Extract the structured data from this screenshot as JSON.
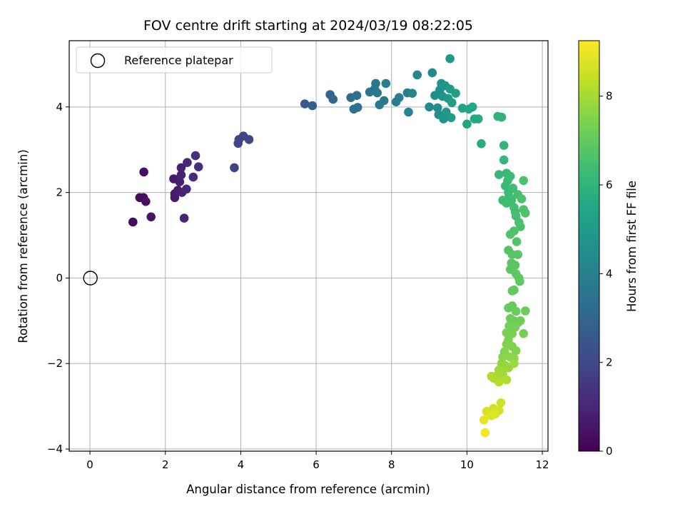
{
  "chart_data": {
    "type": "scatter",
    "title": "FOV centre drift starting at 2024/03/19 08:22:05",
    "xlabel": "Angular distance from reference (arcmin)",
    "ylabel": "Rotation from reference (arcmin)",
    "xlim": [
      -0.55,
      12.15
    ],
    "ylim": [
      -4.05,
      5.55
    ],
    "xticks": [
      0,
      2,
      4,
      6,
      8,
      10,
      12
    ],
    "yticks": [
      -4,
      -2,
      0,
      2,
      4
    ],
    "xtick_labels": [
      "0",
      "2",
      "4",
      "6",
      "8",
      "10",
      "12"
    ],
    "ytick_labels": [
      "−4",
      "−2",
      "0",
      "2",
      "4"
    ],
    "grid": true,
    "legend": {
      "position": "upper-left",
      "entries": [
        {
          "label": "Reference platepar",
          "marker": "open-circle"
        }
      ]
    },
    "reference_point": {
      "x": 0,
      "y": 0
    },
    "colorbar": {
      "label": "Hours from first FF file",
      "range": [
        0,
        9.25
      ],
      "ticks": [
        0,
        2,
        4,
        6,
        8
      ],
      "tick_labels": [
        "0",
        "2",
        "4",
        "6",
        "8"
      ],
      "colormap": "viridis"
    },
    "points": [
      {
        "x": 1.14,
        "y": 1.31,
        "t": 0.25
      },
      {
        "x": 1.32,
        "y": 1.88,
        "t": 0.3
      },
      {
        "x": 1.42,
        "y": 1.88,
        "t": 0.35
      },
      {
        "x": 1.43,
        "y": 2.48,
        "t": 0.4
      },
      {
        "x": 1.48,
        "y": 1.79,
        "t": 0.45
      },
      {
        "x": 1.62,
        "y": 1.43,
        "t": 0.5
      },
      {
        "x": 2.22,
        "y": 2.32,
        "t": 0.65
      },
      {
        "x": 2.25,
        "y": 1.97,
        "t": 0.7
      },
      {
        "x": 2.25,
        "y": 1.88,
        "t": 0.72
      },
      {
        "x": 2.33,
        "y": 2.05,
        "t": 0.75
      },
      {
        "x": 2.38,
        "y": 2.25,
        "t": 0.8
      },
      {
        "x": 2.42,
        "y": 2.58,
        "t": 0.85
      },
      {
        "x": 2.42,
        "y": 2.41,
        "t": 0.88
      },
      {
        "x": 2.44,
        "y": 2.0,
        "t": 0.9
      },
      {
        "x": 2.5,
        "y": 1.4,
        "t": 0.95
      },
      {
        "x": 2.56,
        "y": 2.08,
        "t": 1.0
      },
      {
        "x": 2.58,
        "y": 2.7,
        "t": 1.05
      },
      {
        "x": 2.74,
        "y": 2.36,
        "t": 1.15
      },
      {
        "x": 2.8,
        "y": 2.86,
        "t": 1.2
      },
      {
        "x": 2.88,
        "y": 2.6,
        "t": 1.25
      },
      {
        "x": 3.83,
        "y": 2.58,
        "t": 1.8
      },
      {
        "x": 3.93,
        "y": 3.15,
        "t": 1.85
      },
      {
        "x": 3.95,
        "y": 3.24,
        "t": 1.9
      },
      {
        "x": 4.07,
        "y": 3.32,
        "t": 1.95
      },
      {
        "x": 4.22,
        "y": 3.24,
        "t": 2.0
      },
      {
        "x": 5.7,
        "y": 4.07,
        "t": 2.65
      },
      {
        "x": 5.9,
        "y": 4.03,
        "t": 2.75
      },
      {
        "x": 6.37,
        "y": 4.29,
        "t": 3.0
      },
      {
        "x": 6.45,
        "y": 4.18,
        "t": 3.05
      },
      {
        "x": 6.92,
        "y": 4.22,
        "t": 3.25
      },
      {
        "x": 7.0,
        "y": 3.95,
        "t": 3.3
      },
      {
        "x": 7.08,
        "y": 4.27,
        "t": 3.35
      },
      {
        "x": 7.1,
        "y": 3.99,
        "t": 3.4
      },
      {
        "x": 7.42,
        "y": 4.35,
        "t": 3.5
      },
      {
        "x": 7.55,
        "y": 4.42,
        "t": 3.55
      },
      {
        "x": 7.58,
        "y": 4.55,
        "t": 3.6
      },
      {
        "x": 7.62,
        "y": 4.33,
        "t": 3.65
      },
      {
        "x": 7.68,
        "y": 4.05,
        "t": 3.7
      },
      {
        "x": 7.8,
        "y": 4.15,
        "t": 3.75
      },
      {
        "x": 7.85,
        "y": 4.55,
        "t": 3.8
      },
      {
        "x": 8.12,
        "y": 4.12,
        "t": 3.9
      },
      {
        "x": 8.2,
        "y": 4.22,
        "t": 3.95
      },
      {
        "x": 8.42,
        "y": 4.33,
        "t": 4.05
      },
      {
        "x": 8.45,
        "y": 3.88,
        "t": 4.1
      },
      {
        "x": 8.55,
        "y": 4.32,
        "t": 4.15
      },
      {
        "x": 8.68,
        "y": 4.75,
        "t": 4.2
      },
      {
        "x": 9.0,
        "y": 4.0,
        "t": 4.35
      },
      {
        "x": 9.08,
        "y": 4.8,
        "t": 4.4
      },
      {
        "x": 9.15,
        "y": 4.27,
        "t": 4.45
      },
      {
        "x": 9.22,
        "y": 3.98,
        "t": 4.5
      },
      {
        "x": 9.25,
        "y": 3.82,
        "t": 4.55
      },
      {
        "x": 9.28,
        "y": 4.4,
        "t": 4.6
      },
      {
        "x": 9.32,
        "y": 4.55,
        "t": 4.65
      },
      {
        "x": 9.35,
        "y": 4.25,
        "t": 4.7
      },
      {
        "x": 9.38,
        "y": 3.72,
        "t": 4.75
      },
      {
        "x": 9.42,
        "y": 4.5,
        "t": 4.8
      },
      {
        "x": 9.45,
        "y": 3.88,
        "t": 4.85
      },
      {
        "x": 9.5,
        "y": 4.2,
        "t": 4.9
      },
      {
        "x": 9.55,
        "y": 5.13,
        "t": 4.95
      },
      {
        "x": 9.55,
        "y": 4.42,
        "t": 5.0
      },
      {
        "x": 9.58,
        "y": 3.75,
        "t": 5.05
      },
      {
        "x": 9.6,
        "y": 4.1,
        "t": 5.1
      },
      {
        "x": 9.7,
        "y": 4.32,
        "t": 5.15
      },
      {
        "x": 9.88,
        "y": 3.97,
        "t": 5.3
      },
      {
        "x": 10.0,
        "y": 3.6,
        "t": 5.4
      },
      {
        "x": 10.05,
        "y": 3.95,
        "t": 5.45
      },
      {
        "x": 10.15,
        "y": 4.0,
        "t": 5.5
      },
      {
        "x": 10.2,
        "y": 3.72,
        "t": 5.55
      },
      {
        "x": 10.3,
        "y": 3.72,
        "t": 5.6
      },
      {
        "x": 10.38,
        "y": 3.14,
        "t": 5.7
      },
      {
        "x": 10.82,
        "y": 3.78,
        "t": 5.95
      },
      {
        "x": 10.92,
        "y": 3.76,
        "t": 6.0
      },
      {
        "x": 10.85,
        "y": 2.42,
        "t": 6.1
      },
      {
        "x": 10.98,
        "y": 3.1,
        "t": 6.05
      },
      {
        "x": 10.98,
        "y": 2.76,
        "t": 6.1
      },
      {
        "x": 11.05,
        "y": 2.45,
        "t": 6.15
      },
      {
        "x": 11.02,
        "y": 2.15,
        "t": 6.2
      },
      {
        "x": 11.08,
        "y": 2.28,
        "t": 6.22
      },
      {
        "x": 11.1,
        "y": 2.0,
        "t": 6.25
      },
      {
        "x": 11.12,
        "y": 1.9,
        "t": 6.28
      },
      {
        "x": 11.15,
        "y": 2.38,
        "t": 6.3
      },
      {
        "x": 11.18,
        "y": 1.82,
        "t": 6.32
      },
      {
        "x": 10.95,
        "y": 1.82,
        "t": 6.35
      },
      {
        "x": 11.05,
        "y": 1.75,
        "t": 6.38
      },
      {
        "x": 11.22,
        "y": 2.1,
        "t": 6.4
      },
      {
        "x": 11.25,
        "y": 1.65,
        "t": 6.42
      },
      {
        "x": 11.28,
        "y": 1.55,
        "t": 6.45
      },
      {
        "x": 11.3,
        "y": 1.45,
        "t": 6.48
      },
      {
        "x": 11.35,
        "y": 1.95,
        "t": 6.5
      },
      {
        "x": 11.38,
        "y": 1.3,
        "t": 6.52
      },
      {
        "x": 11.42,
        "y": 1.2,
        "t": 6.55
      },
      {
        "x": 11.45,
        "y": 1.85,
        "t": 6.58
      },
      {
        "x": 11.5,
        "y": 2.28,
        "t": 6.6
      },
      {
        "x": 11.5,
        "y": 1.6,
        "t": 6.62
      },
      {
        "x": 11.55,
        "y": 1.52,
        "t": 6.65
      },
      {
        "x": 11.25,
        "y": 1.1,
        "t": 6.68
      },
      {
        "x": 11.15,
        "y": 1.02,
        "t": 6.7
      },
      {
        "x": 11.32,
        "y": 0.85,
        "t": 6.72
      },
      {
        "x": 11.1,
        "y": 0.65,
        "t": 6.75
      },
      {
        "x": 11.2,
        "y": 0.55,
        "t": 6.78
      },
      {
        "x": 11.35,
        "y": 0.55,
        "t": 6.8
      },
      {
        "x": 11.18,
        "y": 0.35,
        "t": 6.82
      },
      {
        "x": 11.28,
        "y": 0.3,
        "t": 6.85
      },
      {
        "x": 11.15,
        "y": 0.2,
        "t": 6.88
      },
      {
        "x": 11.3,
        "y": 0.1,
        "t": 6.9
      },
      {
        "x": 11.38,
        "y": 0.0,
        "t": 6.92
      },
      {
        "x": 11.4,
        "y": -0.08,
        "t": 6.95
      },
      {
        "x": 11.2,
        "y": -0.3,
        "t": 6.98
      },
      {
        "x": 11.25,
        "y": -0.28,
        "t": 7.0
      },
      {
        "x": 11.1,
        "y": -0.7,
        "t": 7.05
      },
      {
        "x": 11.2,
        "y": -0.65,
        "t": 7.08
      },
      {
        "x": 11.3,
        "y": -0.78,
        "t": 7.1
      },
      {
        "x": 11.55,
        "y": -0.77,
        "t": 7.12
      },
      {
        "x": 11.15,
        "y": -0.95,
        "t": 7.15
      },
      {
        "x": 11.25,
        "y": -1.0,
        "t": 7.18
      },
      {
        "x": 11.35,
        "y": -1.05,
        "t": 7.2
      },
      {
        "x": 11.42,
        "y": -1.0,
        "t": 7.22
      },
      {
        "x": 11.12,
        "y": -1.12,
        "t": 7.25
      },
      {
        "x": 11.28,
        "y": -1.15,
        "t": 7.28
      },
      {
        "x": 11.5,
        "y": -1.3,
        "t": 7.3
      },
      {
        "x": 11.05,
        "y": -1.28,
        "t": 7.35
      },
      {
        "x": 11.2,
        "y": -1.3,
        "t": 7.38
      },
      {
        "x": 11.1,
        "y": -1.45,
        "t": 7.4
      },
      {
        "x": 11.05,
        "y": -1.55,
        "t": 7.45
      },
      {
        "x": 11.2,
        "y": -1.6,
        "t": 7.48
      },
      {
        "x": 11.3,
        "y": -1.7,
        "t": 7.5
      },
      {
        "x": 11.0,
        "y": -1.72,
        "t": 7.55
      },
      {
        "x": 10.95,
        "y": -1.85,
        "t": 7.6
      },
      {
        "x": 11.15,
        "y": -1.85,
        "t": 7.62
      },
      {
        "x": 11.25,
        "y": -1.88,
        "t": 7.65
      },
      {
        "x": 10.92,
        "y": -2.0,
        "t": 7.7
      },
      {
        "x": 11.02,
        "y": -2.05,
        "t": 7.75
      },
      {
        "x": 11.1,
        "y": -2.1,
        "t": 7.8
      },
      {
        "x": 11.25,
        "y": -2.0,
        "t": 7.85
      },
      {
        "x": 10.85,
        "y": -2.15,
        "t": 7.9
      },
      {
        "x": 10.95,
        "y": -2.25,
        "t": 7.95
      },
      {
        "x": 10.8,
        "y": -2.28,
        "t": 8.0
      },
      {
        "x": 10.72,
        "y": -2.35,
        "t": 8.05
      },
      {
        "x": 11.05,
        "y": -2.38,
        "t": 8.1
      },
      {
        "x": 10.65,
        "y": -2.3,
        "t": 8.15
      },
      {
        "x": 10.85,
        "y": -2.43,
        "t": 8.2
      },
      {
        "x": 10.9,
        "y": -2.92,
        "t": 8.5
      },
      {
        "x": 10.7,
        "y": -3.05,
        "t": 8.6
      },
      {
        "x": 10.85,
        "y": -3.1,
        "t": 8.65
      },
      {
        "x": 10.52,
        "y": -3.12,
        "t": 8.7
      },
      {
        "x": 10.75,
        "y": -3.18,
        "t": 8.75
      },
      {
        "x": 10.65,
        "y": -3.22,
        "t": 8.8
      },
      {
        "x": 10.45,
        "y": -3.32,
        "t": 8.9
      },
      {
        "x": 10.48,
        "y": -3.62,
        "t": 9.1
      }
    ]
  }
}
